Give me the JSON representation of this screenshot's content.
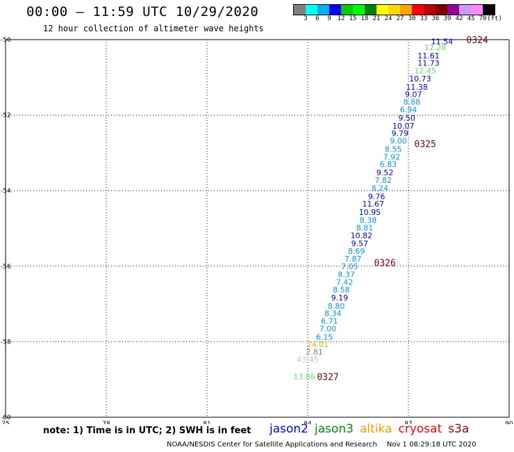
{
  "header": {
    "title": "00:00 – 11:59 UTC 10/29/2020",
    "subtitle": "12 hour collection of altimeter wave heights"
  },
  "colorbar": {
    "colors": [
      "#808080",
      "#00ffff",
      "#00b0f0",
      "#0000ff",
      "#00cc00",
      "#00ff00",
      "#008000",
      "#ffff00",
      "#ffd700",
      "#ffa500",
      "#ff0000",
      "#c00000",
      "#800000",
      "#990099",
      "#cc99ff",
      "#ff88ff",
      "#000000"
    ],
    "labels": [
      "3",
      "6",
      "9",
      "12",
      "15",
      "18",
      "21",
      "24",
      "27",
      "30",
      "33",
      "36",
      "39",
      "42",
      "45",
      "70",
      "(ft)"
    ]
  },
  "chart_data": {
    "type": "scatter",
    "xlim": [
      75,
      90
    ],
    "ylim": [
      -60,
      -50
    ],
    "x_ticks": [
      "75",
      "78",
      "81",
      "84",
      "87",
      "90"
    ],
    "y_ticks": [
      "-50",
      "-52",
      "-54",
      "-56",
      "-58",
      "-60"
    ],
    "grid": true,
    "points": [
      {
        "x": 88.0,
        "y": -50.05,
        "label": "11.54",
        "color": "#0000cc"
      },
      {
        "x": 87.8,
        "y": -50.2,
        "label": "12.28",
        "color": "#66dd66"
      },
      {
        "x": 87.6,
        "y": -50.42,
        "label": "11.61",
        "color": "#0000cc"
      },
      {
        "x": 87.6,
        "y": -50.62,
        "label": "11.73",
        "color": "#0000cc"
      },
      {
        "x": 87.5,
        "y": -50.82,
        "label": "12.45",
        "color": "#66dd66"
      },
      {
        "x": 87.35,
        "y": -51.03,
        "label": "10.73",
        "color": "#0000cc"
      },
      {
        "x": 87.25,
        "y": -51.25,
        "label": "11.38",
        "color": "#0000cc"
      },
      {
        "x": 87.15,
        "y": -51.45,
        "label": "9.07",
        "color": "#0000cc"
      },
      {
        "x": 87.1,
        "y": -51.65,
        "label": "8.88",
        "color": "#0099dd"
      },
      {
        "x": 87.0,
        "y": -51.85,
        "label": "6.94",
        "color": "#0099dd"
      },
      {
        "x": 86.95,
        "y": -52.07,
        "label": "9.50",
        "color": "#0000cc"
      },
      {
        "x": 86.85,
        "y": -52.28,
        "label": "10.07",
        "color": "#0000cc"
      },
      {
        "x": 86.75,
        "y": -52.48,
        "label": "9.79",
        "color": "#0000cc"
      },
      {
        "x": 86.7,
        "y": -52.68,
        "label": "9.00",
        "color": "#0099dd"
      },
      {
        "x": 86.55,
        "y": -52.9,
        "label": "8.55",
        "color": "#0099dd"
      },
      {
        "x": 86.5,
        "y": -53.1,
        "label": "7.92",
        "color": "#0099dd"
      },
      {
        "x": 86.4,
        "y": -53.3,
        "label": "6.83",
        "color": "#0099dd"
      },
      {
        "x": 86.3,
        "y": -53.52,
        "label": "9.52",
        "color": "#0000cc"
      },
      {
        "x": 86.25,
        "y": -53.72,
        "label": "7.82",
        "color": "#0099dd"
      },
      {
        "x": 86.15,
        "y": -53.93,
        "label": "8.24",
        "color": "#0099dd"
      },
      {
        "x": 86.05,
        "y": -54.15,
        "label": "9.76",
        "color": "#0000cc"
      },
      {
        "x": 85.95,
        "y": -54.35,
        "label": "11.67",
        "color": "#0000cc"
      },
      {
        "x": 85.85,
        "y": -54.57,
        "label": "10.95",
        "color": "#0000cc"
      },
      {
        "x": 85.8,
        "y": -54.78,
        "label": "8.38",
        "color": "#0099dd"
      },
      {
        "x": 85.7,
        "y": -54.98,
        "label": "8.81",
        "color": "#0099dd"
      },
      {
        "x": 85.6,
        "y": -55.18,
        "label": "10.82",
        "color": "#0000cc"
      },
      {
        "x": 85.55,
        "y": -55.4,
        "label": "9.57",
        "color": "#0000cc"
      },
      {
        "x": 85.45,
        "y": -55.6,
        "label": "8.69",
        "color": "#0099dd"
      },
      {
        "x": 85.35,
        "y": -55.8,
        "label": "7.87",
        "color": "#0099dd"
      },
      {
        "x": 85.25,
        "y": -56.0,
        "label": "7.05",
        "color": "#0099dd"
      },
      {
        "x": 85.15,
        "y": -56.22,
        "label": "8.37",
        "color": "#0099dd"
      },
      {
        "x": 85.1,
        "y": -56.42,
        "label": "7.42",
        "color": "#0099dd"
      },
      {
        "x": 85.0,
        "y": -56.62,
        "label": "8.58",
        "color": "#0099dd"
      },
      {
        "x": 84.95,
        "y": -56.83,
        "label": "9.19",
        "color": "#0000cc"
      },
      {
        "x": 84.85,
        "y": -57.05,
        "label": "8.80",
        "color": "#0099dd"
      },
      {
        "x": 84.75,
        "y": -57.25,
        "label": "8.34",
        "color": "#0099dd"
      },
      {
        "x": 84.65,
        "y": -57.45,
        "label": "6.71",
        "color": "#0099dd"
      },
      {
        "x": 84.6,
        "y": -57.65,
        "label": "7.00",
        "color": "#0099dd"
      },
      {
        "x": 84.5,
        "y": -57.87,
        "label": "6.15",
        "color": "#0099dd"
      },
      {
        "x": 84.3,
        "y": -58.07,
        "label": "24.01",
        "color": "#e0b000"
      },
      {
        "x": 84.2,
        "y": -58.27,
        "label": "2.81",
        "color": "#808080"
      },
      {
        "x": 84.0,
        "y": -58.47,
        "label": "43.45",
        "color": "#c0c0f0"
      },
      {
        "x": 83.9,
        "y": -58.92,
        "label": "13.86",
        "color": "#66dd66"
      }
    ],
    "time_labels": [
      {
        "x": 89.05,
        "y": -50.0,
        "label": "0324"
      },
      {
        "x": 87.5,
        "y": -52.75,
        "label": "0325"
      },
      {
        "x": 86.3,
        "y": -55.9,
        "label": "0326"
      },
      {
        "x": 84.6,
        "y": -58.92,
        "label": "0327"
      }
    ]
  },
  "note": "note: 1) Time is in UTC; 2) SWH is in feet",
  "missions": [
    {
      "name": "jason2",
      "color": "#0000ff"
    },
    {
      "name": "jason3",
      "color": "#008800"
    },
    {
      "name": "altika",
      "color": "#ff9900"
    },
    {
      "name": "cryosat",
      "color": "#ff0000"
    },
    {
      "name": "s3a",
      "color": "#990000"
    }
  ],
  "footer": {
    "credit": "NOAA/NESDIS Center for Satellite Applications and Research",
    "timestamp": "Nov  1 08:29:18 UTC 2020"
  }
}
